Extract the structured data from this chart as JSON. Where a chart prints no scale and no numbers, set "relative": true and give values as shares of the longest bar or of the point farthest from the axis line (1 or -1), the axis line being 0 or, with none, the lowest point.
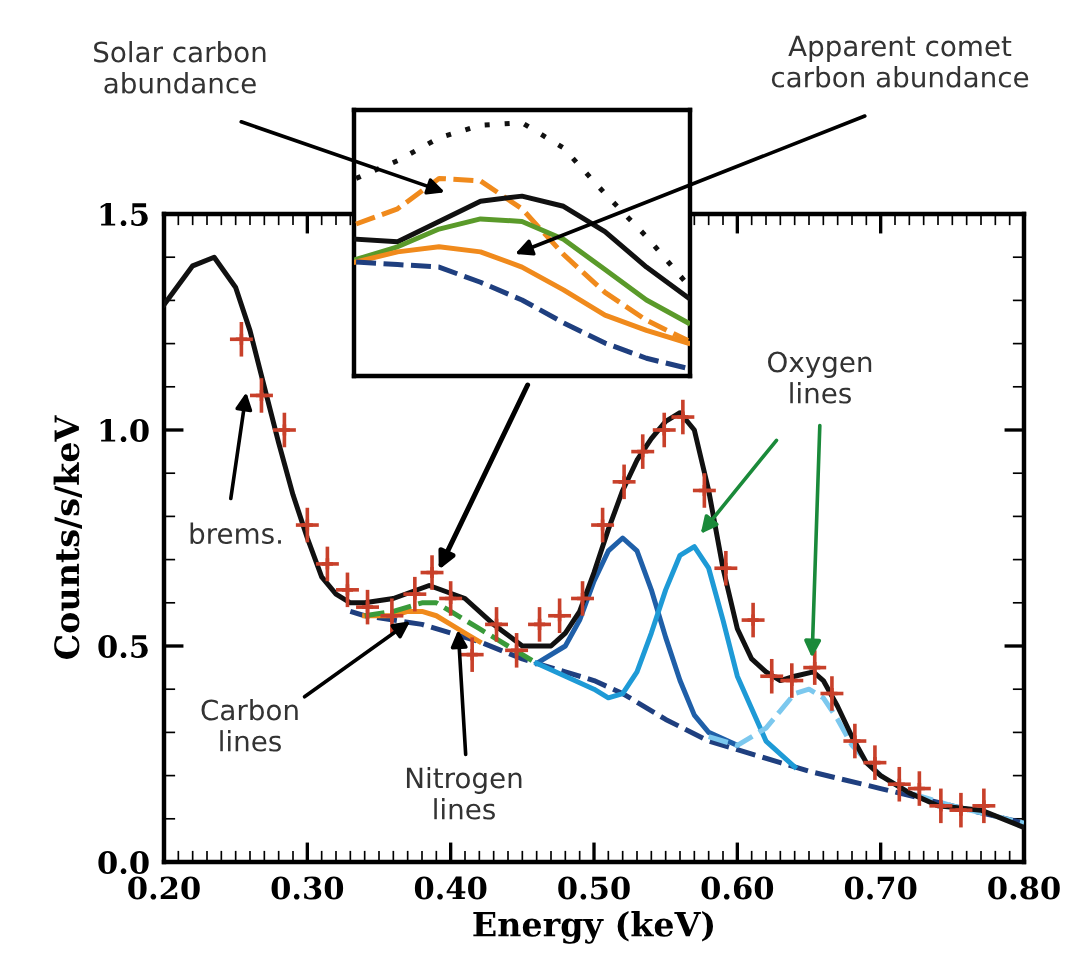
{
  "chart_data": [
    {
      "type": "line",
      "xlabel": "Energy (keV)",
      "ylabel": "Counts/s/keV",
      "xlim": [
        0.2,
        0.8
      ],
      "ylim": [
        0,
        1.5
      ],
      "xticks": [
        {
          "value": 0.2,
          "label": "0.20"
        },
        {
          "value": 0.3,
          "label": "0.30"
        },
        {
          "value": 0.4,
          "label": "0.40"
        },
        {
          "value": 0.5,
          "label": "0.50"
        },
        {
          "value": 0.6,
          "label": "0.60"
        },
        {
          "value": 0.7,
          "label": "0.70"
        },
        {
          "value": 0.8,
          "label": "0.80"
        }
      ],
      "yticks": [
        {
          "value": 0,
          "label": "0.0"
        },
        {
          "value": 0.5,
          "label": "0.5"
        },
        {
          "value": 1.0,
          "label": "1.0"
        },
        {
          "value": 1.5,
          "label": "1.5"
        }
      ],
      "series": [
        {
          "color": "#1f3f7f",
          "line_style": "dashed",
          "x": [
            0.33,
            0.34,
            0.36,
            0.38,
            0.4,
            0.42,
            0.45,
            0.48,
            0.5,
            0.52,
            0.55,
            0.58,
            0.6,
            0.63,
            0.65,
            0.7,
            0.75,
            0.8
          ],
          "values": [
            0.58,
            0.57,
            0.56,
            0.55,
            0.53,
            0.51,
            0.47,
            0.44,
            0.42,
            0.39,
            0.33,
            0.28,
            0.26,
            0.23,
            0.21,
            0.17,
            0.13,
            0.09
          ]
        },
        {
          "color": "#f08a1c",
          "line_style": "solid",
          "x": [
            0.34,
            0.36,
            0.37,
            0.38,
            0.39,
            0.4,
            0.41,
            0.42
          ],
          "values": [
            0.57,
            0.57,
            0.58,
            0.58,
            0.57,
            0.55,
            0.53,
            0.51
          ]
        },
        {
          "color": "#3a9a3a",
          "line_style": "dashed",
          "x": [
            0.34,
            0.36,
            0.37,
            0.38,
            0.39,
            0.4,
            0.42,
            0.44,
            0.46
          ],
          "values": [
            0.57,
            0.58,
            0.59,
            0.6,
            0.6,
            0.58,
            0.54,
            0.5,
            0.46
          ]
        },
        {
          "color": "#1f5fa8",
          "line_style": "solid",
          "x": [
            0.46,
            0.48,
            0.49,
            0.5,
            0.51,
            0.52,
            0.53,
            0.54,
            0.55,
            0.56,
            0.57,
            0.58,
            0.6
          ],
          "values": [
            0.46,
            0.5,
            0.56,
            0.65,
            0.72,
            0.75,
            0.72,
            0.63,
            0.52,
            0.42,
            0.34,
            0.3,
            0.27
          ]
        },
        {
          "color": "#1e9ad6",
          "line_style": "solid",
          "x": [
            0.46,
            0.48,
            0.5,
            0.51,
            0.52,
            0.53,
            0.54,
            0.55,
            0.56,
            0.57,
            0.58,
            0.59,
            0.6,
            0.62,
            0.64
          ],
          "values": [
            0.46,
            0.43,
            0.4,
            0.38,
            0.39,
            0.44,
            0.53,
            0.63,
            0.71,
            0.73,
            0.68,
            0.56,
            0.43,
            0.28,
            0.22
          ]
        },
        {
          "color": "#7cc8ee",
          "line_style": "dashed",
          "x": [
            0.58,
            0.6,
            0.62,
            0.63,
            0.64,
            0.65,
            0.66,
            0.67,
            0.68,
            0.7,
            0.72,
            0.75,
            0.8
          ],
          "values": [
            0.29,
            0.27,
            0.31,
            0.35,
            0.39,
            0.4,
            0.38,
            0.33,
            0.27,
            0.2,
            0.16,
            0.13,
            0.09
          ]
        },
        {
          "color": "#111111",
          "line_style": "solid",
          "x": [
            0.2,
            0.22,
            0.235,
            0.25,
            0.26,
            0.27,
            0.28,
            0.29,
            0.3,
            0.31,
            0.32,
            0.33,
            0.34,
            0.36,
            0.385,
            0.41,
            0.43,
            0.45,
            0.47,
            0.48,
            0.49,
            0.5,
            0.51,
            0.52,
            0.53,
            0.54,
            0.55,
            0.56,
            0.57,
            0.58,
            0.59,
            0.6,
            0.61,
            0.62,
            0.63,
            0.64,
            0.653,
            0.66,
            0.67,
            0.68,
            0.69,
            0.7,
            0.72,
            0.74,
            0.77,
            0.8
          ],
          "values": [
            1.29,
            1.38,
            1.4,
            1.33,
            1.23,
            1.1,
            0.97,
            0.85,
            0.75,
            0.66,
            0.62,
            0.6,
            0.6,
            0.61,
            0.64,
            0.61,
            0.55,
            0.5,
            0.5,
            0.53,
            0.58,
            0.67,
            0.77,
            0.86,
            0.93,
            0.98,
            1.02,
            1.04,
            1.0,
            0.86,
            0.68,
            0.54,
            0.47,
            0.44,
            0.42,
            0.43,
            0.44,
            0.42,
            0.36,
            0.29,
            0.23,
            0.2,
            0.16,
            0.13,
            0.12,
            0.08
          ]
        },
        {
          "type": "scatter",
          "color": "#c8402a",
          "marker": "cross",
          "x": [
            0.254,
            0.268,
            0.284,
            0.3,
            0.314,
            0.328,
            0.342,
            0.359,
            0.375,
            0.387,
            0.4,
            0.415,
            0.432,
            0.446,
            0.462,
            0.476,
            0.492,
            0.506,
            0.521,
            0.534,
            0.549,
            0.562,
            0.577,
            0.592,
            0.611,
            0.624,
            0.638,
            0.654,
            0.666,
            0.682,
            0.696,
            0.713,
            0.727,
            0.742,
            0.756,
            0.772
          ],
          "values": [
            1.21,
            1.08,
            1.0,
            0.78,
            0.69,
            0.63,
            0.59,
            0.57,
            0.62,
            0.67,
            0.61,
            0.48,
            0.55,
            0.49,
            0.55,
            0.57,
            0.61,
            0.78,
            0.88,
            0.95,
            1.0,
            1.03,
            0.86,
            0.68,
            0.56,
            0.43,
            0.42,
            0.45,
            0.39,
            0.28,
            0.23,
            0.18,
            0.17,
            0.13,
            0.12,
            0.13
          ],
          "errors": [
            0.04,
            0.04,
            0.04,
            0.04,
            0.04,
            0.04,
            0.04,
            0.04,
            0.04,
            0.04,
            0.04,
            0.04,
            0.04,
            0.04,
            0.04,
            0.04,
            0.04,
            0.04,
            0.04,
            0.04,
            0.04,
            0.04,
            0.04,
            0.04,
            0.04,
            0.04,
            0.04,
            0.04,
            0.04,
            0.04,
            0.04,
            0.04,
            0.04,
            0.04,
            0.04,
            0.04
          ],
          "xerrors": [
            0.008,
            0.008,
            0.008,
            0.008,
            0.008,
            0.008,
            0.008,
            0.008,
            0.008,
            0.008,
            0.008,
            0.008,
            0.008,
            0.008,
            0.008,
            0.008,
            0.008,
            0.008,
            0.008,
            0.008,
            0.008,
            0.008,
            0.008,
            0.008,
            0.008,
            0.008,
            0.008,
            0.008,
            0.008,
            0.008,
            0.008,
            0.008,
            0.008,
            0.008,
            0.008,
            0.008
          ]
        }
      ],
      "annotations": [
        "Solar carbon\nabundance",
        "Apparent comet\ncarbon abundance",
        {
          "text": "brems.",
          "x": 0.258,
          "y": 1.1
        },
        {
          "text": "Carbon\nlines",
          "x": 0.375,
          "y": 0.565
        },
        {
          "text": "Nitrogen\nlines",
          "x": 0.405,
          "y": 0.55
        },
        {
          "text": "Oxygen\nlines",
          "x": 0.652,
          "y": 0.46
        }
      ]
    },
    {
      "type": "line",
      "relative": true,
      "tick_labels": false,
      "categories": [
        null,
        null,
        null,
        null,
        null,
        null,
        null,
        null,
        null
      ],
      "series": [
        {
          "color": "#111111",
          "line_style": "dotted",
          "values": [
            0.78,
            0.85,
            0.94,
            0.99,
            1.0,
            0.9,
            0.72,
            0.55,
            0.36
          ]
        },
        {
          "color": "#f08a1c",
          "line_style": "dashed",
          "values": [
            0.6,
            0.66,
            0.78,
            0.77,
            0.66,
            0.48,
            0.33,
            0.22,
            0.14
          ]
        },
        {
          "color": "#111111",
          "line_style": "solid",
          "values": [
            0.54,
            0.53,
            0.61,
            0.69,
            0.71,
            0.67,
            0.57,
            0.43,
            0.31
          ]
        },
        {
          "color": "#5a9a2a",
          "line_style": "solid",
          "values": [
            0.46,
            0.51,
            0.58,
            0.62,
            0.61,
            0.54,
            0.42,
            0.3,
            0.21
          ]
        },
        {
          "color": "#f08a1c",
          "line_style": "solid",
          "values": [
            0.45,
            0.49,
            0.51,
            0.49,
            0.43,
            0.34,
            0.24,
            0.18,
            0.13
          ]
        },
        {
          "color": "#1f3f7f",
          "line_style": "dashed",
          "values": [
            0.45,
            0.44,
            0.43,
            0.37,
            0.3,
            0.21,
            0.13,
            0.07,
            0.03
          ]
        }
      ]
    }
  ]
}
